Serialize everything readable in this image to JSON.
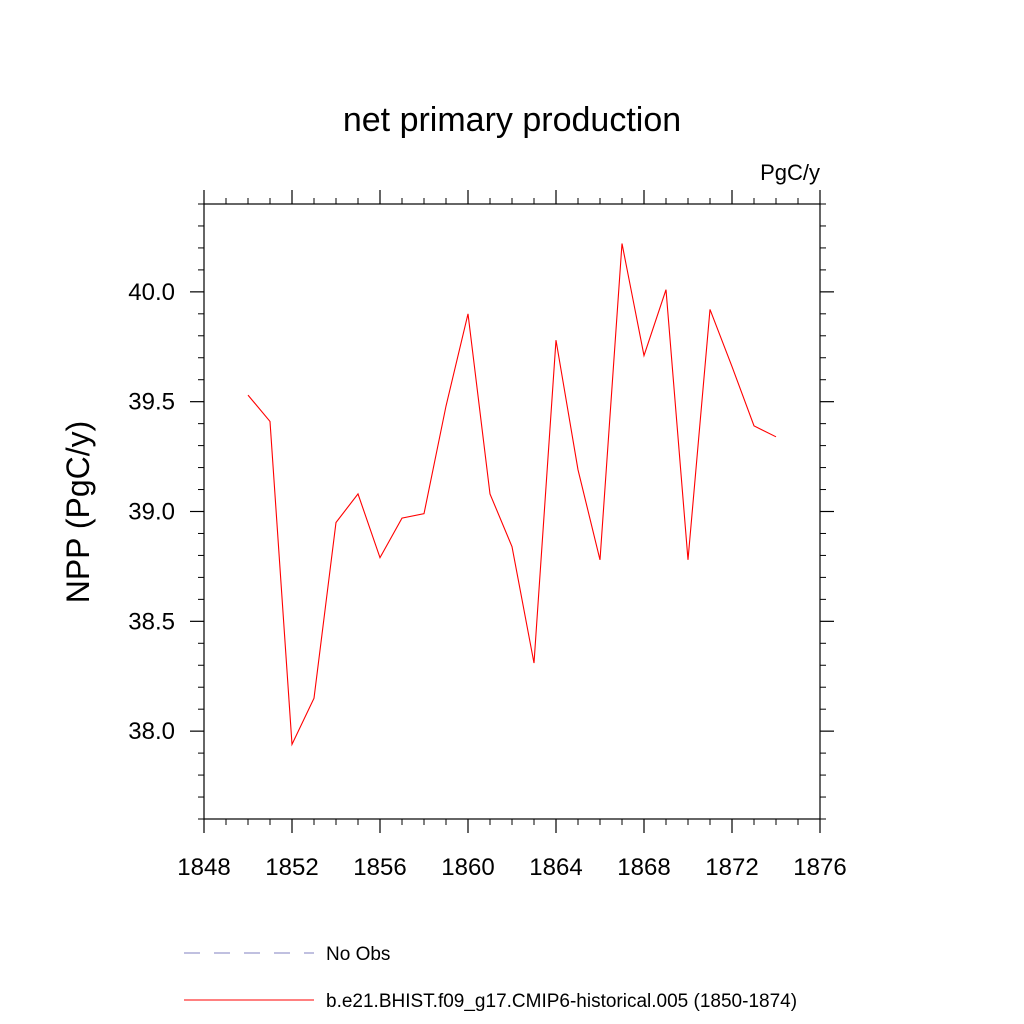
{
  "chart_data": {
    "type": "line",
    "title": "net primary production",
    "units": "PgC/y",
    "ylabel": "NPP  (PgC/y)",
    "xlim": [
      1848,
      1876
    ],
    "ylim": [
      37.6,
      40.4
    ],
    "x_ticks": [
      1848,
      1852,
      1856,
      1860,
      1864,
      1868,
      1872,
      1876
    ],
    "x_tick_labels": [
      "1848",
      "1852",
      "1856",
      "1860",
      "1864",
      "1868",
      "1872",
      "1876"
    ],
    "y_ticks": [
      38.0,
      38.5,
      39.0,
      39.5,
      40.0
    ],
    "y_tick_labels": [
      "38.0",
      "38.5",
      "39.0",
      "39.5",
      "40.0"
    ],
    "grid": false,
    "legend_position": "bottom",
    "series": [
      {
        "name": "b.e21.BHIST.f09_g17.CMIP6-historical.005 (1850-1874)",
        "color": "#ff0000",
        "style": "solid",
        "x": [
          1850,
          1851,
          1852,
          1853,
          1854,
          1855,
          1856,
          1857,
          1858,
          1859,
          1860,
          1861,
          1862,
          1863,
          1864,
          1865,
          1866,
          1867,
          1868,
          1869,
          1870,
          1871,
          1872,
          1873,
          1874
        ],
        "y": [
          39.53,
          39.41,
          37.94,
          38.15,
          38.95,
          39.08,
          38.79,
          38.97,
          38.99,
          39.48,
          39.9,
          39.08,
          38.84,
          38.31,
          39.78,
          39.19,
          38.78,
          40.22,
          39.71,
          40.01,
          38.78,
          39.92,
          39.66,
          39.39,
          39.34
        ]
      },
      {
        "name": "No Obs",
        "color": "#8080c0",
        "style": "dashed",
        "x": [],
        "y": []
      }
    ]
  }
}
